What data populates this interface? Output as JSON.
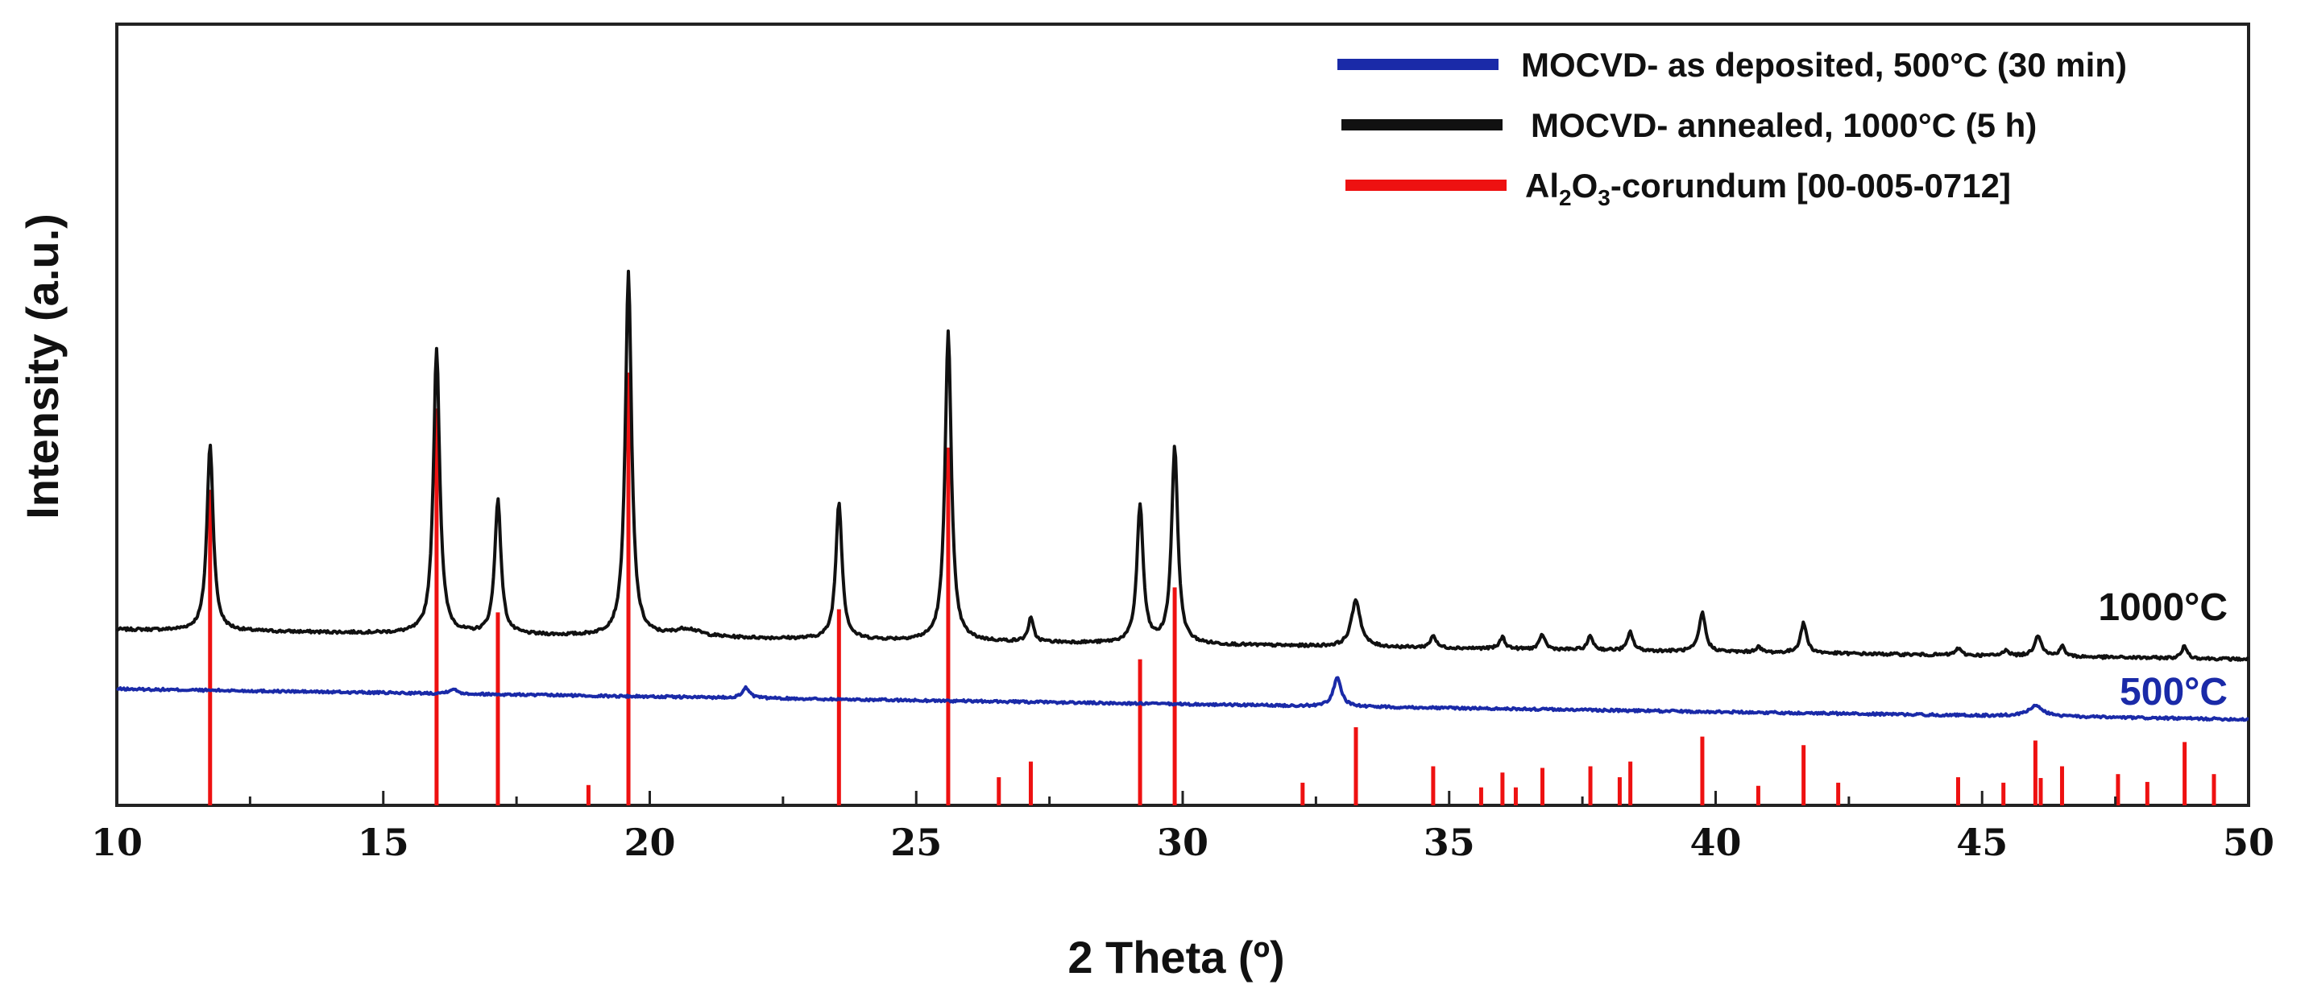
{
  "chart_data": {
    "type": "line",
    "title": "",
    "xlabel": "2 Theta (º)",
    "ylabel": "Intensity (a.u.)",
    "xlim": [
      10,
      50
    ],
    "ylim": [
      0,
      100
    ],
    "x_ticks": [
      10,
      15,
      20,
      25,
      30,
      35,
      40,
      45,
      50
    ],
    "x_tick_labels": [
      "10",
      "15",
      "20",
      "25",
      "30",
      "35",
      "40",
      "45",
      "50"
    ],
    "grid": false,
    "legend_position": "top-right",
    "legend": [
      {
        "key": "as_deposited",
        "label": "MOCVD- as deposited, 500°C (30 min)",
        "color": "#1a2aa8"
      },
      {
        "key": "annealed",
        "label": "MOCVD- annealed, 1000°C (5 h)",
        "color": "#111111"
      },
      {
        "key": "reference",
        "label_prefix": "Al",
        "label_sub1": "2",
        "label_mid": "O",
        "label_sub2": "3",
        "label_suffix": "-corundum [00-005-0712]",
        "color": "#ee1111"
      }
    ],
    "series_labels": [
      {
        "series": "annealed",
        "text": "1000°C",
        "color": "#111111"
      },
      {
        "series": "as_deposited",
        "text": "500°C",
        "color": "#1a2aa8"
      }
    ],
    "series": [
      {
        "name": "MOCVD- annealed, 1000°C (5 h)",
        "color": "#111111",
        "baseline_start": 22.5,
        "baseline_end": 18.7,
        "noise": 0.35,
        "peaks": [
          {
            "x": 11.75,
            "h": 24.0,
            "w": 0.07
          },
          {
            "x": 16.0,
            "h": 36.6,
            "w": 0.07
          },
          {
            "x": 17.15,
            "h": 17.2,
            "w": 0.07
          },
          {
            "x": 19.6,
            "h": 46.5,
            "w": 0.07
          },
          {
            "x": 20.7,
            "h": 1.0,
            "w": 0.3
          },
          {
            "x": 23.55,
            "h": 17.6,
            "w": 0.07
          },
          {
            "x": 25.6,
            "h": 39.8,
            "w": 0.07
          },
          {
            "x": 27.15,
            "h": 3.0,
            "w": 0.06
          },
          {
            "x": 29.2,
            "h": 17.7,
            "w": 0.07
          },
          {
            "x": 29.85,
            "h": 25.1,
            "w": 0.07
          },
          {
            "x": 33.25,
            "h": 6.0,
            "w": 0.1
          },
          {
            "x": 34.7,
            "h": 1.6,
            "w": 0.06
          },
          {
            "x": 36.0,
            "h": 1.5,
            "w": 0.06
          },
          {
            "x": 36.75,
            "h": 1.9,
            "w": 0.06
          },
          {
            "x": 37.65,
            "h": 1.8,
            "w": 0.06
          },
          {
            "x": 38.4,
            "h": 2.4,
            "w": 0.06
          },
          {
            "x": 39.75,
            "h": 5.0,
            "w": 0.07
          },
          {
            "x": 40.8,
            "h": 0.7,
            "w": 0.06
          },
          {
            "x": 41.65,
            "h": 3.8,
            "w": 0.07
          },
          {
            "x": 44.55,
            "h": 0.9,
            "w": 0.06
          },
          {
            "x": 45.45,
            "h": 0.8,
            "w": 0.06
          },
          {
            "x": 46.05,
            "h": 2.7,
            "w": 0.08
          },
          {
            "x": 46.5,
            "h": 1.3,
            "w": 0.06
          },
          {
            "x": 48.8,
            "h": 1.6,
            "w": 0.06
          }
        ]
      },
      {
        "name": "MOCVD- as deposited, 500°C (30 min)",
        "color": "#1a2aa8",
        "baseline_start": 14.9,
        "baseline_end": 11.0,
        "noise": 0.3,
        "peaks": [
          {
            "x": 16.3,
            "h": 0.6,
            "w": 0.1
          },
          {
            "x": 21.8,
            "h": 1.3,
            "w": 0.08
          },
          {
            "x": 32.9,
            "h": 3.6,
            "w": 0.09
          },
          {
            "x": 46.0,
            "h": 1.3,
            "w": 0.18
          }
        ]
      }
    ],
    "reference_lines": {
      "name": "Al2O3-corundum [00-005-0712]",
      "color": "#ee1111",
      "sticks": [
        {
          "x": 11.75,
          "h": 40.4
        },
        {
          "x": 16.0,
          "h": 50.8
        },
        {
          "x": 17.15,
          "h": 24.7
        },
        {
          "x": 18.85,
          "h": 2.6
        },
        {
          "x": 19.6,
          "h": 55.4
        },
        {
          "x": 23.55,
          "h": 25.1
        },
        {
          "x": 25.6,
          "h": 45.8
        },
        {
          "x": 26.55,
          "h": 3.6
        },
        {
          "x": 27.15,
          "h": 5.6
        },
        {
          "x": 29.2,
          "h": 18.7
        },
        {
          "x": 29.85,
          "h": 27.9
        },
        {
          "x": 32.25,
          "h": 2.9
        },
        {
          "x": 33.25,
          "h": 10.0
        },
        {
          "x": 34.7,
          "h": 5.0
        },
        {
          "x": 35.6,
          "h": 2.3
        },
        {
          "x": 36.0,
          "h": 4.2
        },
        {
          "x": 36.25,
          "h": 2.3
        },
        {
          "x": 36.75,
          "h": 4.8
        },
        {
          "x": 37.65,
          "h": 5.0
        },
        {
          "x": 38.2,
          "h": 3.6
        },
        {
          "x": 38.4,
          "h": 5.6
        },
        {
          "x": 39.75,
          "h": 8.8
        },
        {
          "x": 40.8,
          "h": 2.5
        },
        {
          "x": 41.65,
          "h": 7.7
        },
        {
          "x": 42.3,
          "h": 2.9
        },
        {
          "x": 44.55,
          "h": 3.6
        },
        {
          "x": 45.4,
          "h": 2.9
        },
        {
          "x": 46.0,
          "h": 8.3
        },
        {
          "x": 46.1,
          "h": 3.5
        },
        {
          "x": 46.5,
          "h": 5.0
        },
        {
          "x": 47.55,
          "h": 4.0
        },
        {
          "x": 48.1,
          "h": 3.0
        },
        {
          "x": 48.8,
          "h": 8.1
        },
        {
          "x": 49.35,
          "h": 4.0
        }
      ]
    }
  }
}
